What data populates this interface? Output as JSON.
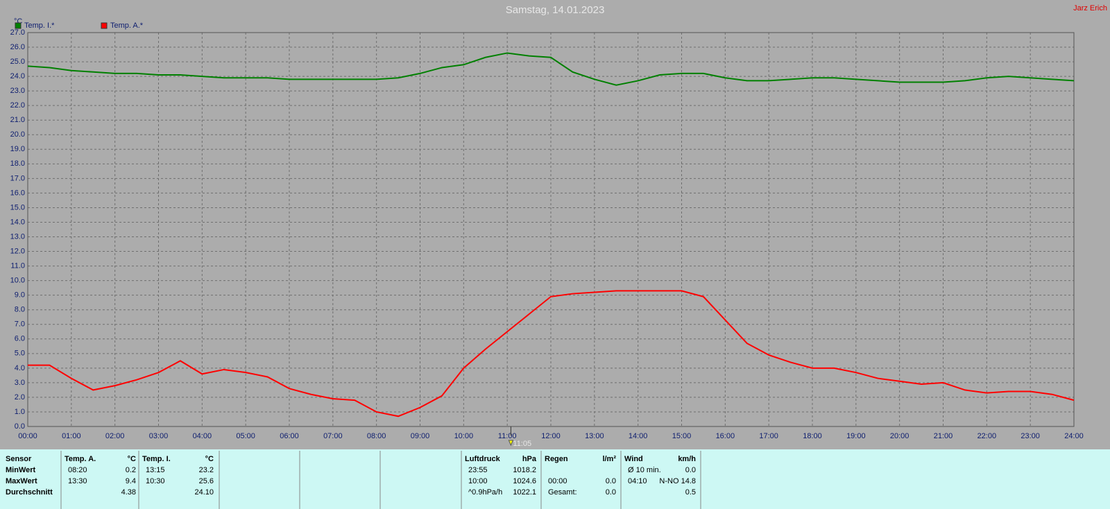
{
  "chart_data": {
    "type": "line",
    "title": "Samstag, 14.01.2023",
    "author": "Jarz Erich",
    "y_label": "°C",
    "x": [
      0,
      0.5,
      1,
      1.5,
      2,
      2.5,
      3,
      3.5,
      4,
      4.5,
      5,
      5.5,
      6,
      6.5,
      7,
      7.5,
      8,
      8.5,
      9,
      9.5,
      10,
      10.5,
      11,
      11.5,
      12,
      12.5,
      13,
      13.5,
      14,
      14.5,
      15,
      15.5,
      16,
      16.5,
      17,
      17.5,
      18,
      18.5,
      19,
      19.5,
      20,
      20.5,
      21,
      21.5,
      22,
      22.5,
      23,
      23.5,
      24
    ],
    "series": [
      {
        "name": "Temp. I.*",
        "color": "#008000",
        "values": [
          24.7,
          24.6,
          24.4,
          24.3,
          24.2,
          24.2,
          24.1,
          24.1,
          24.0,
          23.9,
          23.9,
          23.9,
          23.8,
          23.8,
          23.8,
          23.8,
          23.8,
          23.9,
          24.2,
          24.6,
          24.8,
          25.3,
          25.6,
          25.4,
          25.3,
          24.3,
          23.8,
          23.4,
          23.7,
          24.1,
          24.2,
          24.2,
          23.9,
          23.7,
          23.7,
          23.8,
          23.9,
          23.9,
          23.8,
          23.7,
          23.6,
          23.6,
          23.6,
          23.7,
          23.9,
          24.0,
          23.9,
          23.8,
          23.7
        ]
      },
      {
        "name": "Temp. A.*",
        "color": "#ff0000",
        "values": [
          4.2,
          4.2,
          3.3,
          2.5,
          2.8,
          3.2,
          3.7,
          4.5,
          3.6,
          3.9,
          3.7,
          3.4,
          2.6,
          2.2,
          1.9,
          1.8,
          1.0,
          0.7,
          1.3,
          2.1,
          4.0,
          5.3,
          6.5,
          7.7,
          8.9,
          9.1,
          9.2,
          9.3,
          9.3,
          9.3,
          9.3,
          8.9,
          7.3,
          5.7,
          4.9,
          4.4,
          4.0,
          4.0,
          3.7,
          3.3,
          3.1,
          2.9,
          3.0,
          2.5,
          2.3,
          2.4,
          2.4,
          2.2,
          1.8
        ]
      }
    ],
    "xlim": [
      0,
      24
    ],
    "xticks": [
      {
        "value": 0,
        "label": "00:00"
      },
      {
        "value": 1,
        "label": "01:00"
      },
      {
        "value": 2,
        "label": "02:00"
      },
      {
        "value": 3,
        "label": "03:00"
      },
      {
        "value": 4,
        "label": "04:00"
      },
      {
        "value": 5,
        "label": "05:00"
      },
      {
        "value": 6,
        "label": "06:00"
      },
      {
        "value": 7,
        "label": "07:00"
      },
      {
        "value": 8,
        "label": "08:00"
      },
      {
        "value": 9,
        "label": "09:00"
      },
      {
        "value": 10,
        "label": "10:00"
      },
      {
        "value": 11,
        "label": "11:00"
      },
      {
        "value": 12,
        "label": "12:00"
      },
      {
        "value": 13,
        "label": "13:00"
      },
      {
        "value": 14,
        "label": "14:00"
      },
      {
        "value": 15,
        "label": "15:00"
      },
      {
        "value": 16,
        "label": "16:00"
      },
      {
        "value": 17,
        "label": "17:00"
      },
      {
        "value": 18,
        "label": "18:00"
      },
      {
        "value": 19,
        "label": "19:00"
      },
      {
        "value": 20,
        "label": "20:00"
      },
      {
        "value": 21,
        "label": "21:00"
      },
      {
        "value": 22,
        "label": "22:00"
      },
      {
        "value": 23,
        "label": "23:00"
      },
      {
        "value": 24,
        "label": "24:00"
      }
    ],
    "ylim": [
      0,
      27
    ],
    "yticks": [
      {
        "value": 0,
        "label": "0.0"
      },
      {
        "value": 1,
        "label": "1.0"
      },
      {
        "value": 2,
        "label": "2.0"
      },
      {
        "value": 3,
        "label": "3.0"
      },
      {
        "value": 4,
        "label": "4.0"
      },
      {
        "value": 5,
        "label": "5.0"
      },
      {
        "value": 6,
        "label": "6.0"
      },
      {
        "value": 7,
        "label": "7.0"
      },
      {
        "value": 8,
        "label": "8.0"
      },
      {
        "value": 9,
        "label": "9.0"
      },
      {
        "value": 10,
        "label": "10.0"
      },
      {
        "value": 11,
        "label": "11.0"
      },
      {
        "value": 12,
        "label": "12.0"
      },
      {
        "value": 13,
        "label": "13.0"
      },
      {
        "value": 14,
        "label": "14.0"
      },
      {
        "value": 15,
        "label": "15.0"
      },
      {
        "value": 16,
        "label": "16.0"
      },
      {
        "value": 17,
        "label": "17.0"
      },
      {
        "value": 18,
        "label": "18.0"
      },
      {
        "value": 19,
        "label": "19.0"
      },
      {
        "value": 20,
        "label": "20.0"
      },
      {
        "value": 21,
        "label": "21.0"
      },
      {
        "value": 22,
        "label": "22.0"
      },
      {
        "value": 23,
        "label": "23.0"
      },
      {
        "value": 24,
        "label": "24.0"
      },
      {
        "value": 25,
        "label": "25.0"
      },
      {
        "value": 26,
        "label": "26.0"
      },
      {
        "value": 27,
        "label": "27.0"
      }
    ],
    "grid": true,
    "marker": {
      "x": 11.0833,
      "label": "11:05"
    }
  },
  "stats": {
    "header": "Sensor",
    "row_labels": [
      "MinWert",
      "MaxWert",
      "Durchschnitt"
    ],
    "blocks": [
      {
        "name": "Temp. A.",
        "unit": "°C",
        "rows": [
          [
            "08:20",
            "0.2"
          ],
          [
            "13:30",
            "9.4"
          ],
          [
            null,
            "4.38"
          ]
        ]
      },
      {
        "name": "Temp. I.",
        "unit": "°C",
        "rows": [
          [
            "13:15",
            "23.2"
          ],
          [
            "10:30",
            "25.6"
          ],
          [
            null,
            "24.10"
          ]
        ]
      },
      {
        "name": "Luftdruck",
        "unit": "hPa",
        "rows": [
          [
            "23:55",
            "1018.2"
          ],
          [
            "10:00",
            "1024.6"
          ],
          [
            "^0.9hPa/h",
            "1022.1"
          ]
        ]
      },
      {
        "name": "Regen",
        "unit": "l/m²",
        "rows": [
          [
            null,
            null
          ],
          [
            "00:00",
            "0.0"
          ],
          [
            "Gesamt:",
            "0.0"
          ]
        ]
      },
      {
        "name": "Wind",
        "unit": "km/h",
        "rows": [
          [
            "Ø 10 min.",
            "0.0"
          ],
          [
            "04:10",
            "N-NO 14.8"
          ],
          [
            null,
            "0.5"
          ]
        ]
      }
    ]
  }
}
